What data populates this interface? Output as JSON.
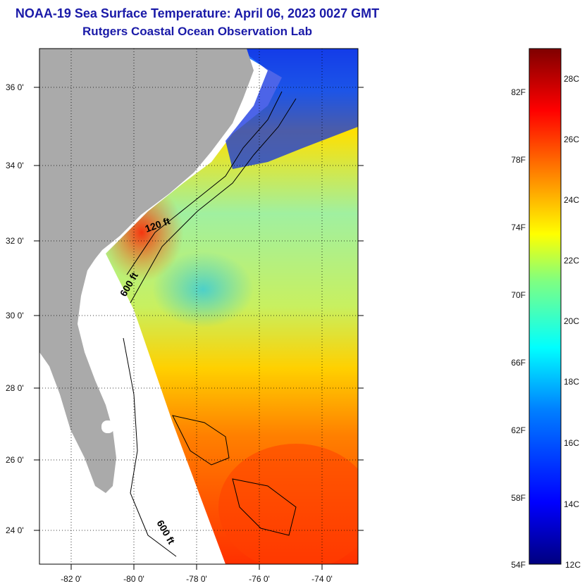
{
  "header": {
    "title": "NOAA-19 Sea Surface Temperature:  April 06, 2023 0027 GMT",
    "subtitle": "Rutgers Coastal Ocean Observation Lab"
  },
  "map": {
    "lat_labels": [
      "36 0'",
      "34 0'",
      "32 0'",
      "30 0'",
      "28 0'",
      "26 0'",
      "24 0'"
    ],
    "lon_labels": [
      "-82 0'",
      "-80 0'",
      "-78 0'",
      "-76 0'",
      "-74 0'"
    ],
    "contour_labels": [
      "120 ft",
      "600 ft",
      "600 ft"
    ],
    "colors": {
      "land": "#aaaaaa",
      "no_data": "#ffffff",
      "gridline": "#000000"
    }
  },
  "colorbar": {
    "fahrenheit_labels": [
      "82F",
      "78F",
      "74F",
      "70F",
      "66F",
      "62F",
      "58F",
      "54F"
    ],
    "celsius_labels": [
      "28C",
      "26C",
      "24C",
      "22C",
      "20C",
      "18C",
      "16C",
      "14C",
      "12C"
    ],
    "range_c": [
      12,
      29
    ],
    "colors": [
      "#00007f",
      "#0000ff",
      "#0080ff",
      "#00ffff",
      "#80ff80",
      "#ffff00",
      "#ff8000",
      "#ff0000",
      "#7f0000"
    ]
  }
}
